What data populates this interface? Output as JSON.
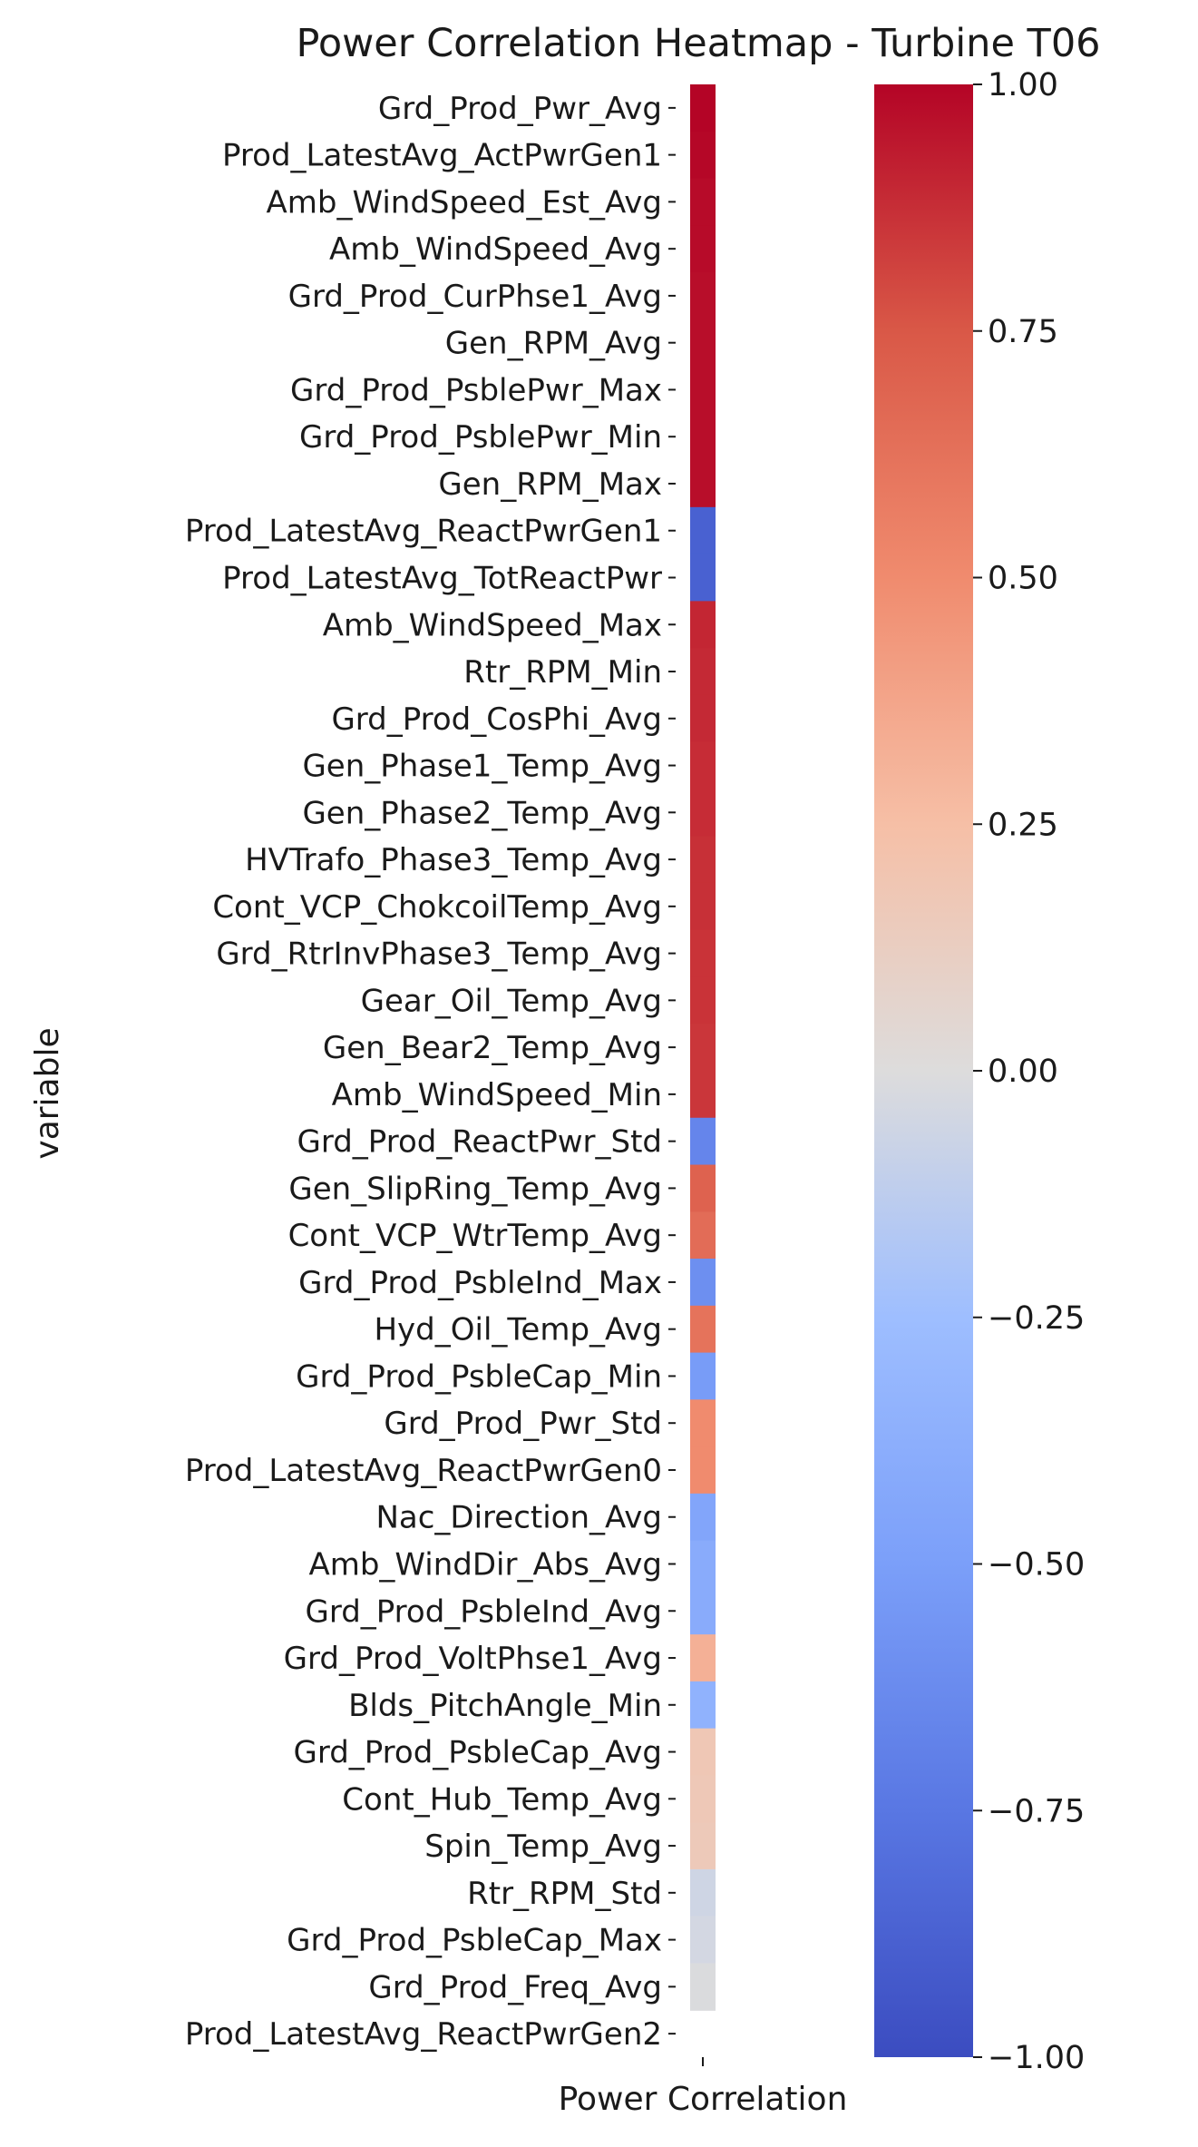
{
  "chart_data": {
    "type": "heatmap",
    "title": "Power Correlation Heatmap - Turbine T06",
    "xlabel": "Power Correlation",
    "ylabel": "variable",
    "x_categories": [
      ""
    ],
    "colormap": "coolwarm",
    "vmin": -1.0,
    "vmax": 1.0,
    "colorbar_ticks": [
      "1.00",
      "0.75",
      "0.50",
      "0.25",
      "0.00",
      "−0.25",
      "−0.50",
      "−0.75",
      "−1.00"
    ],
    "colorbar_tick_values": [
      1.0,
      0.75,
      0.5,
      0.25,
      0.0,
      -0.25,
      -0.5,
      -0.75,
      -1.0
    ],
    "rows": [
      {
        "label": "Grd_Prod_Pwr_Avg",
        "value": 1.0
      },
      {
        "label": "Prod_LatestAvg_ActPwrGen1",
        "value": 0.99
      },
      {
        "label": "Amb_WindSpeed_Est_Avg",
        "value": 0.98
      },
      {
        "label": "Amb_WindSpeed_Avg",
        "value": 0.98
      },
      {
        "label": "Grd_Prod_CurPhse1_Avg",
        "value": 0.97
      },
      {
        "label": "Gen_RPM_Avg",
        "value": 0.97
      },
      {
        "label": "Grd_Prod_PsblePwr_Max",
        "value": 0.97
      },
      {
        "label": "Grd_Prod_PsblePwr_Min",
        "value": 0.97
      },
      {
        "label": "Gen_RPM_Max",
        "value": 0.97
      },
      {
        "label": "Prod_LatestAvg_ReactPwrGen1",
        "value": -0.88
      },
      {
        "label": "Prod_LatestAvg_TotReactPwr",
        "value": -0.88
      },
      {
        "label": "Amb_WindSpeed_Max",
        "value": 0.9
      },
      {
        "label": "Rtr_RPM_Min",
        "value": 0.89
      },
      {
        "label": "Grd_Prod_CosPhi_Avg",
        "value": 0.89
      },
      {
        "label": "Gen_Phase1_Temp_Avg",
        "value": 0.88
      },
      {
        "label": "Gen_Phase2_Temp_Avg",
        "value": 0.88
      },
      {
        "label": "HVTrafo_Phase3_Temp_Avg",
        "value": 0.87
      },
      {
        "label": "Cont_VCP_ChokcoilTemp_Avg",
        "value": 0.87
      },
      {
        "label": "Grd_RtrInvPhase3_Temp_Avg",
        "value": 0.86
      },
      {
        "label": "Gear_Oil_Temp_Avg",
        "value": 0.86
      },
      {
        "label": "Gen_Bear2_Temp_Avg",
        "value": 0.85
      },
      {
        "label": "Amb_WindSpeed_Min",
        "value": 0.85
      },
      {
        "label": "Grd_Prod_ReactPwr_Std",
        "value": -0.66
      },
      {
        "label": "Gen_SlipRing_Temp_Avg",
        "value": 0.7
      },
      {
        "label": "Cont_VCP_WtrTemp_Avg",
        "value": 0.65
      },
      {
        "label": "Grd_Prod_PsbleInd_Max",
        "value": -0.6
      },
      {
        "label": "Hyd_Oil_Temp_Avg",
        "value": 0.62
      },
      {
        "label": "Grd_Prod_PsbleCap_Min",
        "value": -0.52
      },
      {
        "label": "Grd_Prod_Pwr_Std",
        "value": 0.5
      },
      {
        "label": "Prod_LatestAvg_ReactPwrGen0",
        "value": 0.5
      },
      {
        "label": "Nac_Direction_Avg",
        "value": -0.45
      },
      {
        "label": "Amb_WindDir_Abs_Avg",
        "value": -0.4
      },
      {
        "label": "Grd_Prod_PsbleInd_Avg",
        "value": -0.4
      },
      {
        "label": "Grd_Prod_VoltPhse1_Avg",
        "value": 0.32
      },
      {
        "label": "Blds_PitchAngle_Min",
        "value": -0.35
      },
      {
        "label": "Grd_Prod_PsbleCap_Avg",
        "value": 0.18
      },
      {
        "label": "Cont_Hub_Temp_Avg",
        "value": 0.17
      },
      {
        "label": "Spin_Temp_Avg",
        "value": 0.16
      },
      {
        "label": "Rtr_RPM_Std",
        "value": -0.06
      },
      {
        "label": "Grd_Prod_PsbleCap_Max",
        "value": -0.04
      },
      {
        "label": "Grd_Prod_Freq_Avg",
        "value": -0.01
      },
      {
        "label": "Prod_LatestAvg_ReactPwrGen2",
        "value": null
      }
    ]
  }
}
